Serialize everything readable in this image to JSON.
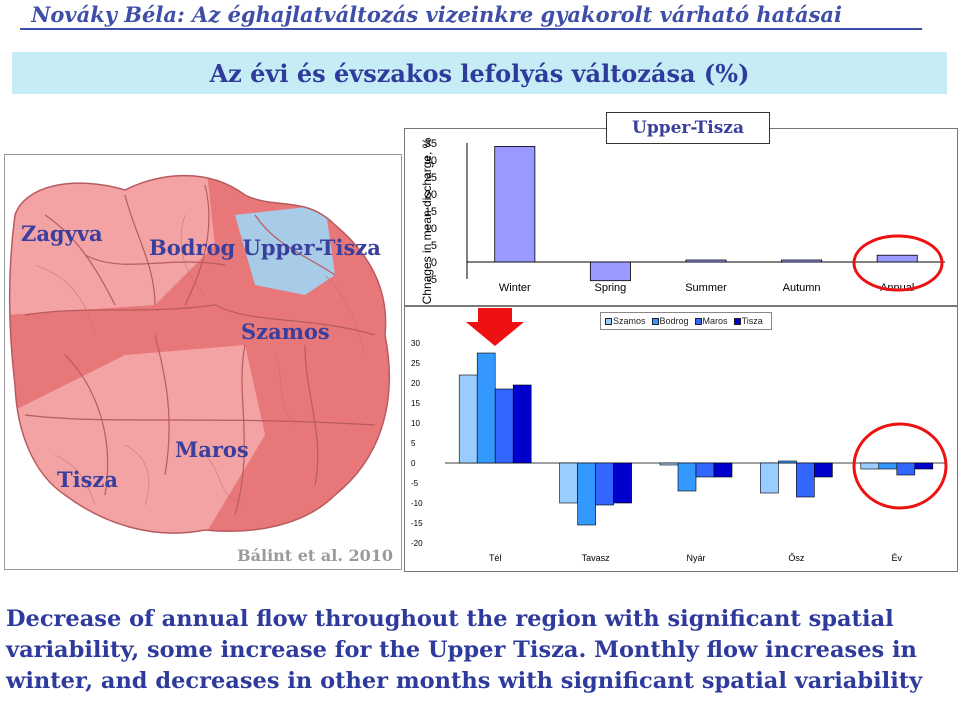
{
  "header": {
    "title": "Nováky Béla: Az éghajlatváltozás vizeinkre gyakorolt várható hatásai"
  },
  "slide": {
    "title": "Az évi és évszakos lefolyás változása (%)"
  },
  "map": {
    "labels": {
      "zagyva": "Zagyva",
      "bodrog_upper": "Bodrog Upper-Tisza",
      "szamos": "Szamos",
      "tisza": "Tisza",
      "maros": "Maros"
    },
    "credit": "Bálint et al. 2010",
    "colors": {
      "red": "#e8777a",
      "pink": "#f3a3a4",
      "blue": "#a8cce8",
      "border": "#b85b5e"
    }
  },
  "chart_data": [
    {
      "type": "bar",
      "title": "Upper-Tisza",
      "ylabel": "Chnages in mean discharge, %",
      "xlabel": "",
      "categories": [
        "Winter",
        "Spring",
        "Summer",
        "Autumn",
        "Annual"
      ],
      "series": [
        {
          "values": [
            34,
            -5.5,
            0.5,
            0,
            2
          ],
          "color": "#9999ff"
        }
      ],
      "ylim": [
        -5,
        35
      ],
      "yticks": [
        35,
        30,
        25,
        20,
        15,
        10,
        5,
        0,
        -5
      ],
      "grid": false
    },
    {
      "type": "bar",
      "xlabel": "",
      "ylabel": "",
      "categories": [
        "Tél",
        "Tavasz",
        "Nyár",
        "Ősz",
        "Év"
      ],
      "series": [
        {
          "name": "Szamos",
          "values": [
            22,
            -10,
            -0.5,
            -7.5,
            -1.5
          ],
          "color": "#99ccff"
        },
        {
          "name": "Bodrog",
          "values": [
            27.5,
            -15.5,
            -7,
            0.5,
            -1.5
          ],
          "color": "#3399ff"
        },
        {
          "name": "Maros",
          "values": [
            18.5,
            -10.5,
            -3.5,
            -8.5,
            -3
          ],
          "color": "#3366ff"
        },
        {
          "name": "Tisza",
          "values": [
            19.5,
            -10,
            -3.5,
            -3.5,
            -1.5
          ],
          "color": "#0000cc"
        }
      ],
      "ylim": [
        -20,
        30
      ],
      "yticks": [
        30,
        25,
        20,
        15,
        10,
        5,
        0,
        -5,
        -10,
        -15,
        -20
      ],
      "legend": "top-right",
      "grid": false
    }
  ],
  "footer": {
    "text": "Decrease of annual flow throughout the region with significant spatial variability, some increase for the Upper Tisza. Monthly flow increases in winter, and decreases in other months with significant spatial variability"
  }
}
